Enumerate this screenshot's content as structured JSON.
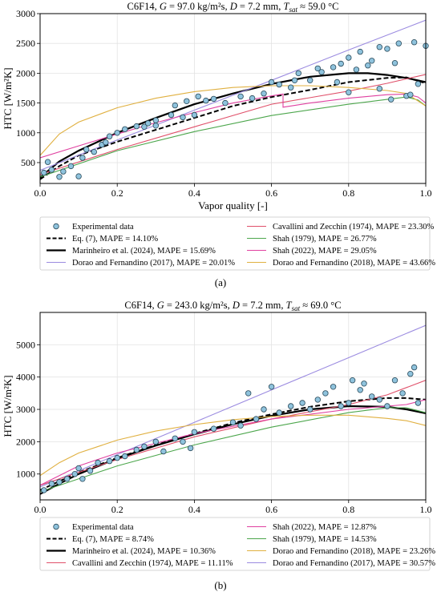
{
  "figure": {
    "panels": [
      {
        "caption": "(a)",
        "title_parts": [
          "C6F14, ",
          "G",
          " = 97.0 kg/m²s, ",
          "D",
          " = 7.2 mm, ",
          "T",
          "sat",
          " ≈  59.0 °C"
        ],
        "xlabel": "Vapor quality [-]",
        "ylabel": "HTC [W/m²K]",
        "xticks": [
          "0.0",
          "0.2",
          "0.4",
          "0.6",
          "0.8",
          "1.0"
        ],
        "yticks": [
          "500",
          "1000",
          "1500",
          "2000",
          "2500",
          "3000"
        ],
        "legend": [
          "Experimental data",
          "Cavallini and Zecchin (1974), MAPE = 23.30%",
          "Eq. (7), MAPE = 14.10%",
          "Shah (1979), MAPE = 26.77%",
          "Marinheiro et al. (2024), MAPE = 15.69%",
          "Shah (2022), MAPE = 29.05%",
          "Dorao and Fernandino (2017), MAPE = 20.01%",
          "Dorao and Fernandino (2018), MAPE = 43.66%"
        ]
      },
      {
        "caption": "(b)",
        "title_parts": [
          "C6F14, ",
          "G",
          " = 243.0 kg/m²s, ",
          "D",
          " = 7.2 mm, ",
          "T",
          "sat",
          " ≈  69.0 °C"
        ],
        "xlabel": "Vapor quality [-]",
        "ylabel": "HTC [W/m²K]",
        "xticks": [
          "0.0",
          "0.2",
          "0.4",
          "0.6",
          "0.8",
          "1.0"
        ],
        "yticks": [
          "1000",
          "2000",
          "3000",
          "4000",
          "5000"
        ],
        "legend": [
          "Experimental data",
          "Shah (2022), MAPE = 12.87%",
          "Eq. (7), MAPE = 8.74%",
          "Shah (1979), MAPE = 14.53%",
          "Marinheiro et al. (2024), MAPE = 10.36%",
          "Dorao and Fernandino (2018), MAPE = 23.26%",
          "Cavallini and Zecchin (1974), MAPE = 11.11%",
          "Dorao and Fernandino (2017), MAPE = 30.57%"
        ]
      }
    ]
  },
  "chart_data": [
    {
      "type": "scatter",
      "title": "C6F14, G = 97.0 kg/m²s, D = 7.2 mm, Tsat ≈ 59.0 °C",
      "xlabel": "Vapor quality [-]",
      "ylabel": "HTC [W/m²K]",
      "xlim": [
        0,
        1
      ],
      "ylim": [
        150,
        3000
      ],
      "grid": true,
      "legend_placement": "below",
      "colors": {
        "experimental": "#8fc3dd",
        "eq7": "#000000",
        "marinheiro": "#000000",
        "dorao2017": "#9b8be0",
        "cavallini": "#e0506a",
        "shah1979": "#4ca64c",
        "shah2022": "#e040a0",
        "dorao2018": "#e0b040"
      },
      "points": [
        [
          0.01,
          330
        ],
        [
          0.02,
          510
        ],
        [
          0.03,
          380
        ],
        [
          0.05,
          260
        ],
        [
          0.06,
          350
        ],
        [
          0.08,
          440
        ],
        [
          0.1,
          270
        ],
        [
          0.11,
          580
        ],
        [
          0.12,
          720
        ],
        [
          0.14,
          680
        ],
        [
          0.16,
          800
        ],
        [
          0.17,
          840
        ],
        [
          0.18,
          940
        ],
        [
          0.2,
          1000
        ],
        [
          0.22,
          1060
        ],
        [
          0.25,
          1110
        ],
        [
          0.27,
          1100
        ],
        [
          0.28,
          1160
        ],
        [
          0.3,
          1210
        ],
        [
          0.3,
          1120
        ],
        [
          0.34,
          1300
        ],
        [
          0.35,
          1460
        ],
        [
          0.37,
          1260
        ],
        [
          0.38,
          1530
        ],
        [
          0.4,
          1300
        ],
        [
          0.41,
          1610
        ],
        [
          0.43,
          1540
        ],
        [
          0.45,
          1570
        ],
        [
          0.48,
          1500
        ],
        [
          0.52,
          1610
        ],
        [
          0.55,
          1580
        ],
        [
          0.58,
          1660
        ],
        [
          0.6,
          1850
        ],
        [
          0.62,
          1810
        ],
        [
          0.65,
          1760
        ],
        [
          0.66,
          1880
        ],
        [
          0.67,
          2000
        ],
        [
          0.7,
          1880
        ],
        [
          0.72,
          2080
        ],
        [
          0.73,
          2020
        ],
        [
          0.76,
          2100
        ],
        [
          0.77,
          1850
        ],
        [
          0.78,
          2160
        ],
        [
          0.8,
          1680
        ],
        [
          0.8,
          2260
        ],
        [
          0.82,
          2060
        ],
        [
          0.83,
          2360
        ],
        [
          0.85,
          2130
        ],
        [
          0.86,
          2210
        ],
        [
          0.88,
          1740
        ],
        [
          0.88,
          2440
        ],
        [
          0.9,
          2410
        ],
        [
          0.91,
          1560
        ],
        [
          0.92,
          2170
        ],
        [
          0.93,
          2500
        ],
        [
          0.95,
          1620
        ],
        [
          0.96,
          1640
        ],
        [
          0.97,
          2520
        ],
        [
          0.98,
          1820
        ],
        [
          1.0,
          2460
        ]
      ],
      "series": [
        {
          "name": "Eq. (7), MAPE = 14.10%",
          "style": "dashed",
          "x": [
            0,
            0.05,
            0.1,
            0.2,
            0.3,
            0.4,
            0.5,
            0.6,
            0.7,
            0.8,
            0.9,
            0.95,
            1.0
          ],
          "y": [
            220,
            440,
            620,
            850,
            1050,
            1250,
            1450,
            1600,
            1720,
            1850,
            1920,
            1930,
            1830
          ]
        },
        {
          "name": "Marinheiro et al. (2024), MAPE = 15.69%",
          "style": "solid-thick",
          "x": [
            0,
            0.05,
            0.1,
            0.2,
            0.3,
            0.4,
            0.5,
            0.6,
            0.7,
            0.8,
            0.85,
            0.9,
            0.95,
            1.0
          ],
          "y": [
            250,
            520,
            700,
            1000,
            1250,
            1480,
            1660,
            1820,
            1940,
            2000,
            2000,
            1970,
            1920,
            1850
          ]
        },
        {
          "name": "Dorao and Fernandino (2017), MAPE = 20.01%",
          "x": [
            0,
            0.2,
            0.4,
            0.6,
            0.8,
            1.0
          ],
          "y": [
            370,
            880,
            1380,
            1880,
            2390,
            2890
          ]
        },
        {
          "name": "Cavallini and Zecchin (1974), MAPE = 23.30%",
          "x": [
            0,
            0.2,
            0.4,
            0.6,
            0.8,
            0.9,
            1.0
          ],
          "y": [
            300,
            720,
            1100,
            1480,
            1700,
            1830,
            1980
          ]
        },
        {
          "name": "Shah (1979), MAPE = 26.77%",
          "x": [
            0,
            0.2,
            0.4,
            0.6,
            0.8,
            0.9,
            0.95,
            0.98,
            1.0
          ],
          "y": [
            260,
            700,
            1020,
            1290,
            1480,
            1560,
            1600,
            1550,
            1450
          ]
        },
        {
          "name": "Shah (2022), MAPE = 29.05%",
          "x": [
            0,
            0.1,
            0.2,
            0.3,
            0.4,
            0.5,
            0.6,
            0.63,
            0.63,
            0.7,
            0.8,
            0.9,
            0.95,
            0.98,
            1.0
          ],
          "y": [
            580,
            780,
            980,
            1170,
            1340,
            1500,
            1620,
            1650,
            1430,
            1500,
            1580,
            1640,
            1650,
            1600,
            1500
          ]
        },
        {
          "name": "Dorao and Fernandino (2018), MAPE = 43.66%",
          "x": [
            0,
            0.05,
            0.1,
            0.2,
            0.3,
            0.4,
            0.5,
            0.6,
            0.7,
            0.8,
            0.9,
            0.95,
            1.0
          ],
          "y": [
            620,
            980,
            1180,
            1420,
            1580,
            1690,
            1760,
            1790,
            1790,
            1760,
            1710,
            1660,
            1450
          ]
        }
      ]
    },
    {
      "type": "scatter",
      "title": "C6F14, G = 243.0 kg/m²s, D = 7.2 mm, Tsat ≈ 69.0 °C",
      "xlabel": "Vapor quality [-]",
      "ylabel": "HTC [W/m²K]",
      "xlim": [
        0,
        1
      ],
      "ylim": [
        200,
        6000
      ],
      "grid": true,
      "legend_placement": "below",
      "colors": {
        "experimental": "#8fc3dd",
        "eq7": "#000000",
        "marinheiro": "#000000",
        "dorao2017": "#9b8be0",
        "cavallini": "#e0506a",
        "shah1979": "#4ca64c",
        "shah2022": "#e040a0",
        "dorao2018": "#e0b040"
      },
      "points": [
        [
          0.01,
          500
        ],
        [
          0.03,
          700
        ],
        [
          0.05,
          750
        ],
        [
          0.07,
          850
        ],
        [
          0.09,
          1000
        ],
        [
          0.1,
          1180
        ],
        [
          0.11,
          850
        ],
        [
          0.13,
          1100
        ],
        [
          0.15,
          1350
        ],
        [
          0.18,
          1400
        ],
        [
          0.2,
          1500
        ],
        [
          0.22,
          1550
        ],
        [
          0.25,
          1750
        ],
        [
          0.27,
          1850
        ],
        [
          0.3,
          2000
        ],
        [
          0.32,
          1700
        ],
        [
          0.35,
          2100
        ],
        [
          0.37,
          2000
        ],
        [
          0.39,
          1800
        ],
        [
          0.4,
          2300
        ],
        [
          0.45,
          2400
        ],
        [
          0.5,
          2600
        ],
        [
          0.52,
          2500
        ],
        [
          0.54,
          3500
        ],
        [
          0.56,
          2700
        ],
        [
          0.58,
          3000
        ],
        [
          0.6,
          3700
        ],
        [
          0.62,
          2900
        ],
        [
          0.65,
          3100
        ],
        [
          0.68,
          3200
        ],
        [
          0.7,
          3000
        ],
        [
          0.72,
          3300
        ],
        [
          0.74,
          3500
        ],
        [
          0.76,
          3700
        ],
        [
          0.78,
          3100
        ],
        [
          0.8,
          3200
        ],
        [
          0.81,
          3900
        ],
        [
          0.83,
          3600
        ],
        [
          0.84,
          3800
        ],
        [
          0.86,
          3400
        ],
        [
          0.88,
          3300
        ],
        [
          0.9,
          3100
        ],
        [
          0.92,
          3900
        ],
        [
          0.94,
          3500
        ],
        [
          0.96,
          4100
        ],
        [
          0.97,
          4300
        ],
        [
          0.98,
          3200
        ]
      ],
      "series": [
        {
          "name": "Eq. (7), MAPE = 8.74%",
          "style": "dashed",
          "x": [
            0,
            0.1,
            0.2,
            0.3,
            0.4,
            0.5,
            0.6,
            0.7,
            0.8,
            0.9,
            0.95,
            1.0
          ],
          "y": [
            500,
            1050,
            1500,
            1900,
            2250,
            2580,
            2850,
            3080,
            3250,
            3350,
            3350,
            3300
          ]
        },
        {
          "name": "Marinheiro et al. (2024), MAPE = 10.36%",
          "style": "solid-thick",
          "x": [
            0,
            0.05,
            0.1,
            0.2,
            0.3,
            0.4,
            0.5,
            0.6,
            0.7,
            0.8,
            0.9,
            0.95,
            1.0
          ],
          "y": [
            380,
            700,
            1000,
            1480,
            1880,
            2230,
            2540,
            2800,
            3000,
            3100,
            3080,
            3000,
            2880
          ]
        },
        {
          "name": "Dorao and Fernandino (2017), MAPE = 30.57%",
          "x": [
            0,
            0.2,
            0.4,
            0.6,
            0.8,
            1.0
          ],
          "y": [
            600,
            1600,
            2600,
            3600,
            4600,
            5600
          ]
        },
        {
          "name": "Cavallini and Zecchin (1974), MAPE = 11.11%",
          "x": [
            0,
            0.2,
            0.4,
            0.6,
            0.8,
            0.9,
            1.0
          ],
          "y": [
            650,
            1450,
            2150,
            2700,
            3150,
            3450,
            3900
          ]
        },
        {
          "name": "Shah (1979), MAPE = 14.53%",
          "x": [
            0,
            0.2,
            0.4,
            0.6,
            0.8,
            0.9,
            0.95,
            1.0
          ],
          "y": [
            450,
            1250,
            1900,
            2450,
            2900,
            3050,
            3050,
            2900
          ]
        },
        {
          "name": "Shah (2022), MAPE = 12.87%",
          "x": [
            0,
            0.1,
            0.2,
            0.4,
            0.6,
            0.8,
            0.9,
            0.95,
            1.0
          ],
          "y": [
            650,
            1250,
            1650,
            2250,
            2700,
            3000,
            3100,
            3150,
            3300
          ]
        },
        {
          "name": "Dorao and Fernandino (2018), MAPE = 23.26%",
          "x": [
            0,
            0.05,
            0.1,
            0.2,
            0.3,
            0.4,
            0.5,
            0.6,
            0.7,
            0.8,
            0.9,
            0.95,
            1.0
          ],
          "y": [
            950,
            1350,
            1650,
            2050,
            2330,
            2530,
            2680,
            2780,
            2820,
            2820,
            2720,
            2650,
            2500
          ]
        }
      ]
    }
  ]
}
